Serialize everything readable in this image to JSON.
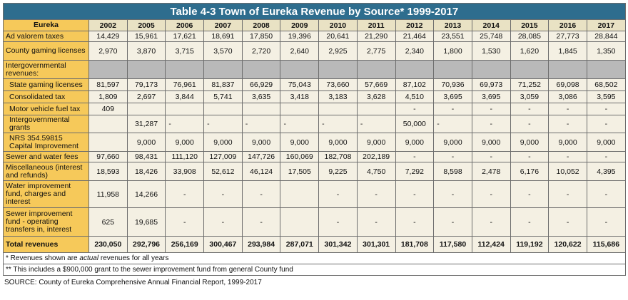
{
  "title": "Table 4-3 Town of Eureka Revenue by Source*  1999-2017",
  "header_label": "Eureka",
  "years": [
    "2002",
    "2005",
    "2006",
    "2007",
    "2008",
    "2009",
    "2010",
    "2011",
    "2012",
    "2013",
    "2014",
    "2015",
    "2016",
    "2017"
  ],
  "rows": [
    {
      "label": "Ad valorem taxes",
      "indent": false,
      "gray": false,
      "h": 15,
      "values": [
        "14,429",
        "15,961",
        "17,621",
        "18,691",
        "17,850",
        "19,396",
        "20,641",
        "21,290",
        "21,464",
        "23,551",
        "25,748",
        "28,085",
        "27,773",
        "28,844"
      ]
    },
    {
      "label": "County gaming licenses",
      "indent": false,
      "gray": false,
      "h": 26,
      "values": [
        "2,970",
        "3,870",
        "3,715",
        "3,570",
        "2,720",
        "2,640",
        "2,925",
        "2,775",
        "2,340",
        "1,800",
        "1,530",
        "1,620",
        "1,845",
        "1,350"
      ]
    },
    {
      "label": "Intergovernmental revenues:",
      "indent": false,
      "gray": true,
      "h": 26,
      "values": [
        "",
        "",
        "",
        "",
        "",
        "",
        "",
        "",
        "",
        "",
        "",
        "",
        "",
        ""
      ]
    },
    {
      "label": "State gaming licenses",
      "indent": true,
      "gray": false,
      "h": 17,
      "values": [
        "81,597",
        "79,173",
        "76,961",
        "81,837",
        "66,929",
        "75,043",
        "73,660",
        "57,669",
        "87,102",
        "70,936",
        "69,973",
        "71,252",
        "69,098",
        "68,502"
      ]
    },
    {
      "label": "Consolidated tax",
      "indent": true,
      "gray": false,
      "h": 17,
      "values": [
        "1,809",
        "2,697",
        "3,844",
        "5,741",
        "3,635",
        "3,418",
        "3,183",
        "3,628",
        "4,510",
        "3,695",
        "3,695",
        "3,059",
        "3,086",
        "3,595"
      ]
    },
    {
      "label": "Motor vehicle fuel tax",
      "indent": true,
      "gray": false,
      "h": 17,
      "values": [
        "409",
        "",
        "",
        "",
        "",
        "",
        "",
        "",
        "-",
        "-",
        "-",
        "-",
        "-",
        "-"
      ]
    },
    {
      "label": "Intergovernmental grants",
      "indent": true,
      "gray": false,
      "h": 25,
      "values": [
        "",
        "31,287",
        "-",
        "-",
        "-",
        "-",
        "-",
        "-",
        "50,000",
        "-",
        "-",
        "-",
        "-",
        "-"
      ],
      "left": [
        false,
        false,
        true,
        true,
        true,
        true,
        true,
        true,
        false,
        true,
        false,
        false,
        false,
        false
      ]
    },
    {
      "label": "NRS 354.59815 Capital    Improvement",
      "indent": true,
      "gray": false,
      "h": 26,
      "values": [
        "",
        "9,000",
        "9,000",
        "9,000",
        "9,000",
        "9,000",
        "9,000",
        "9,000",
        "9,000",
        "9,000",
        "9,000",
        "9,000",
        "9,000",
        "9,000"
      ]
    },
    {
      "label": "Sewer and water fees",
      "indent": false,
      "gray": false,
      "h": 15,
      "values": [
        "97,660",
        "98,431",
        "111,120",
        "127,009",
        "147,726",
        "160,069",
        "182,708",
        "202,189",
        "-",
        "-",
        "-",
        "-",
        "-",
        "-"
      ]
    },
    {
      "label": "Miscellaneous (interest and refunds)",
      "indent": false,
      "gray": false,
      "h": 26,
      "values": [
        "18,593",
        "18,426",
        "33,908",
        "52,612",
        "46,124",
        "17,505",
        "9,225",
        "4,750",
        "7,292",
        "8,598",
        "2,478",
        "6,176",
        "10,052",
        "4,395"
      ]
    },
    {
      "label": "Water improvement fund, charges and interest",
      "indent": false,
      "gray": false,
      "h": 38,
      "values": [
        "11,958",
        "14,266",
        "-",
        "-",
        "-",
        "",
        "-",
        "-",
        "-",
        "-",
        "-",
        "-",
        "-",
        "-"
      ]
    },
    {
      "label": "Sewer improvement fund - operating transfers in, interest",
      "indent": false,
      "gray": false,
      "h": 40,
      "values": [
        "625",
        "19,685",
        "-",
        "-",
        "-",
        "",
        "-",
        "-",
        "-",
        "-",
        "-",
        "-",
        "-",
        "-"
      ]
    },
    {
      "label": "Total revenues",
      "indent": false,
      "gray": false,
      "h": 23,
      "total": true,
      "values": [
        "230,050",
        "292,796",
        "256,169",
        "300,467",
        "293,984",
        "287,071",
        "301,342",
        "301,301",
        "181,708",
        "117,580",
        "112,424",
        "119,192",
        "120,622",
        "115,686"
      ]
    }
  ],
  "footnotes": [
    {
      "prefix": "* Revenues shown are ",
      "em": "actual",
      "suffix": " revenues for all years"
    },
    {
      "prefix": "** This includes a $900,000 grant to the sewer improvement fund from general County fund",
      "em": "",
      "suffix": ""
    }
  ],
  "source": "SOURCE: County of Eureka Comprehensive Annual Financial Report, 1999-2017",
  "colors": {
    "title_bg": "#2e6d8e",
    "label_bg": "#f6c95a",
    "cell_bg": "#f4f0e3",
    "gray_bg": "#b9b9b9",
    "header_bg": "#e9e2c4"
  }
}
